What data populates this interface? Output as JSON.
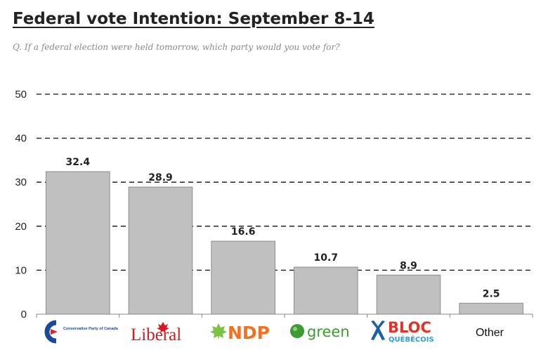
{
  "title": "Federal vote Intention: September 8-14",
  "subtitle": "Q. If a federal election were held tomorrow, which party would you vote for?",
  "chart_data": {
    "type": "bar",
    "title": "Federal vote Intention: September 8-14",
    "subtitle": "Q. If a federal election were held tomorrow, which party would you vote for?",
    "categories": [
      "Conservative Party of Canada",
      "Liberal",
      "NDP",
      "green",
      "BLOC QUÉBÉCOIS",
      "Other"
    ],
    "values": [
      32.4,
      28.9,
      16.6,
      10.7,
      8.9,
      2.5
    ],
    "value_labels": [
      "32.4",
      "28.9",
      "16.6",
      "10.7",
      "8.9",
      "2.5"
    ],
    "yticks": [
      "0",
      "10",
      "20",
      "30",
      "40",
      "50"
    ],
    "ylim": [
      0,
      50
    ],
    "grid": "dashed horizontal",
    "legend": "none",
    "bar_color": "#c0c0c0",
    "bar_edge_color": "#8c8c8c"
  },
  "logos": {
    "conservative": {
      "text": "Conservative Party of Canada",
      "color": "#1a4a9c",
      "accent": "#d8262e"
    },
    "liberal": {
      "text": "Liberal",
      "color": "#d71920"
    },
    "ndp": {
      "text": "NDP",
      "color": "#f37021",
      "leaf_color": "#7cc243"
    },
    "green": {
      "text": "green",
      "color": "#3d9b35"
    },
    "bloc": {
      "text": "BLOC",
      "subtext": "QUÉBÉCOIS",
      "color": "#e4322b",
      "sub_color": "#2a9fd6",
      "icon_color": "#1a5fa8"
    },
    "other": {
      "text": "Other"
    }
  }
}
